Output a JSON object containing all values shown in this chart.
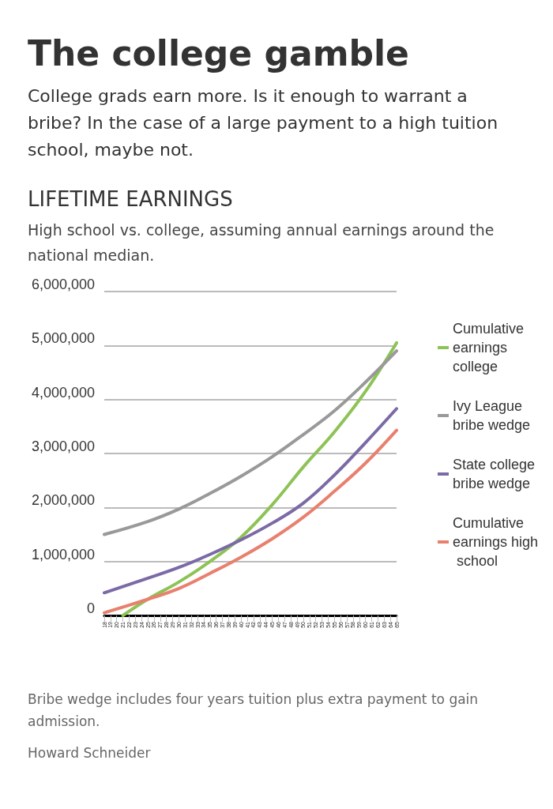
{
  "chart_data": {
    "type": "line",
    "title": "The college gamble",
    "subtitle": "College grads earn more. Is it enough to warrant a bribe? In the case of a large payment to a high tuition school, maybe not.",
    "annotations": [
      "LIFETIME EARNINGS",
      "High school vs. college, assuming annual earnings around the national median.",
      "Bribe wedge includes four years tuition plus extra payment to gain admission.",
      "Howard Schneider"
    ],
    "series": [
      {
        "name": "Cumulative earnings college",
        "color": "#8dc356",
        "x": [
          21,
          25,
          30,
          35,
          40,
          45,
          50,
          55,
          60,
          65
        ],
        "values": [
          0,
          300000,
          620000,
          1000000,
          1450000,
          2050000,
          2750000,
          3400000,
          4150000,
          5050000
        ]
      },
      {
        "name": "Ivy League bribe wedge",
        "color": "#999999",
        "x": [
          18,
          25,
          30,
          35,
          40,
          45,
          50,
          55,
          60,
          65
        ],
        "values": [
          1500000,
          1740000,
          1970000,
          2260000,
          2580000,
          2940000,
          3350000,
          3790000,
          4320000,
          4900000
        ]
      },
      {
        "name": "State college bribe wedge",
        "color": "#7b6aa6",
        "x": [
          18,
          25,
          30,
          35,
          40,
          45,
          50,
          55,
          60,
          65
        ],
        "values": [
          420000,
          690000,
          890000,
          1130000,
          1400000,
          1710000,
          2080000,
          2600000,
          3200000,
          3830000
        ]
      },
      {
        "name": "Cumulative earnings high school",
        "color": "#e8806e",
        "x": [
          18,
          25,
          30,
          35,
          40,
          45,
          50,
          55,
          60,
          65
        ],
        "values": [
          50000,
          300000,
          500000,
          780000,
          1080000,
          1420000,
          1820000,
          2300000,
          2820000,
          3430000
        ]
      }
    ],
    "xlim": [
      18,
      65
    ],
    "xticks": [
      18,
      19,
      20,
      21,
      22,
      23,
      24,
      25,
      26,
      27,
      28,
      29,
      30,
      31,
      32,
      33,
      34,
      35,
      36,
      37,
      38,
      39,
      40,
      41,
      42,
      43,
      44,
      45,
      46,
      47,
      48,
      49,
      50,
      51,
      52,
      53,
      54,
      55,
      56,
      57,
      58,
      59,
      60,
      61,
      62,
      63,
      64,
      65
    ],
    "ylim": [
      0,
      6000000
    ],
    "yticks": [
      0,
      {
        "value": 1000000,
        "label": "1,000,000"
      },
      {
        "value": 2000000,
        "label": "2,000,000"
      },
      {
        "value": 3000000,
        "label": "3,000,000"
      },
      {
        "value": 4000000,
        "label": "4,000,000"
      },
      {
        "value": 5000000,
        "label": "5,000,000"
      },
      {
        "value": 6000000,
        "label": "6,000,000"
      }
    ],
    "grid": "y",
    "legend": "right",
    "marker": "none",
    "line_style": "solid"
  }
}
